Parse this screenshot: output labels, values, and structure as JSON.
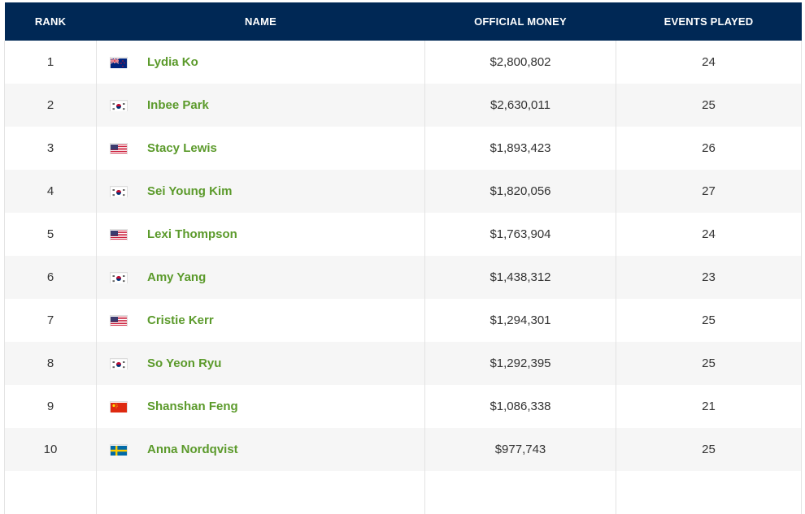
{
  "table": {
    "headers": {
      "rank": "RANK",
      "name": "NAME",
      "money": "OFFICIAL MONEY",
      "events": "EVENTS PLAYED"
    },
    "rows": [
      {
        "rank": "1",
        "flag": "new-zealand-flag-icon",
        "name": "Lydia Ko",
        "money": "$2,800,802",
        "events": "24"
      },
      {
        "rank": "2",
        "flag": "south-korea-flag-icon",
        "name": "Inbee Park",
        "money": "$2,630,011",
        "events": "25"
      },
      {
        "rank": "3",
        "flag": "usa-flag-icon",
        "name": "Stacy Lewis",
        "money": "$1,893,423",
        "events": "26"
      },
      {
        "rank": "4",
        "flag": "south-korea-flag-icon",
        "name": "Sei Young Kim",
        "money": "$1,820,056",
        "events": "27"
      },
      {
        "rank": "5",
        "flag": "usa-flag-icon",
        "name": "Lexi Thompson",
        "money": "$1,763,904",
        "events": "24"
      },
      {
        "rank": "6",
        "flag": "south-korea-flag-icon",
        "name": "Amy Yang",
        "money": "$1,438,312",
        "events": "23"
      },
      {
        "rank": "7",
        "flag": "usa-flag-icon",
        "name": "Cristie Kerr",
        "money": "$1,294,301",
        "events": "25"
      },
      {
        "rank": "8",
        "flag": "south-korea-flag-icon",
        "name": "So Yeon Ryu",
        "money": "$1,292,395",
        "events": "25"
      },
      {
        "rank": "9",
        "flag": "china-flag-icon",
        "name": "Shanshan Feng",
        "money": "$1,086,338",
        "events": "21"
      },
      {
        "rank": "10",
        "flag": "sweden-flag-icon",
        "name": "Anna Nordqvist",
        "money": "$977,743",
        "events": "25"
      }
    ]
  },
  "colors": {
    "header_bg": "#002855",
    "link": "#5b9a2b",
    "stripe": "#f6f6f6"
  }
}
